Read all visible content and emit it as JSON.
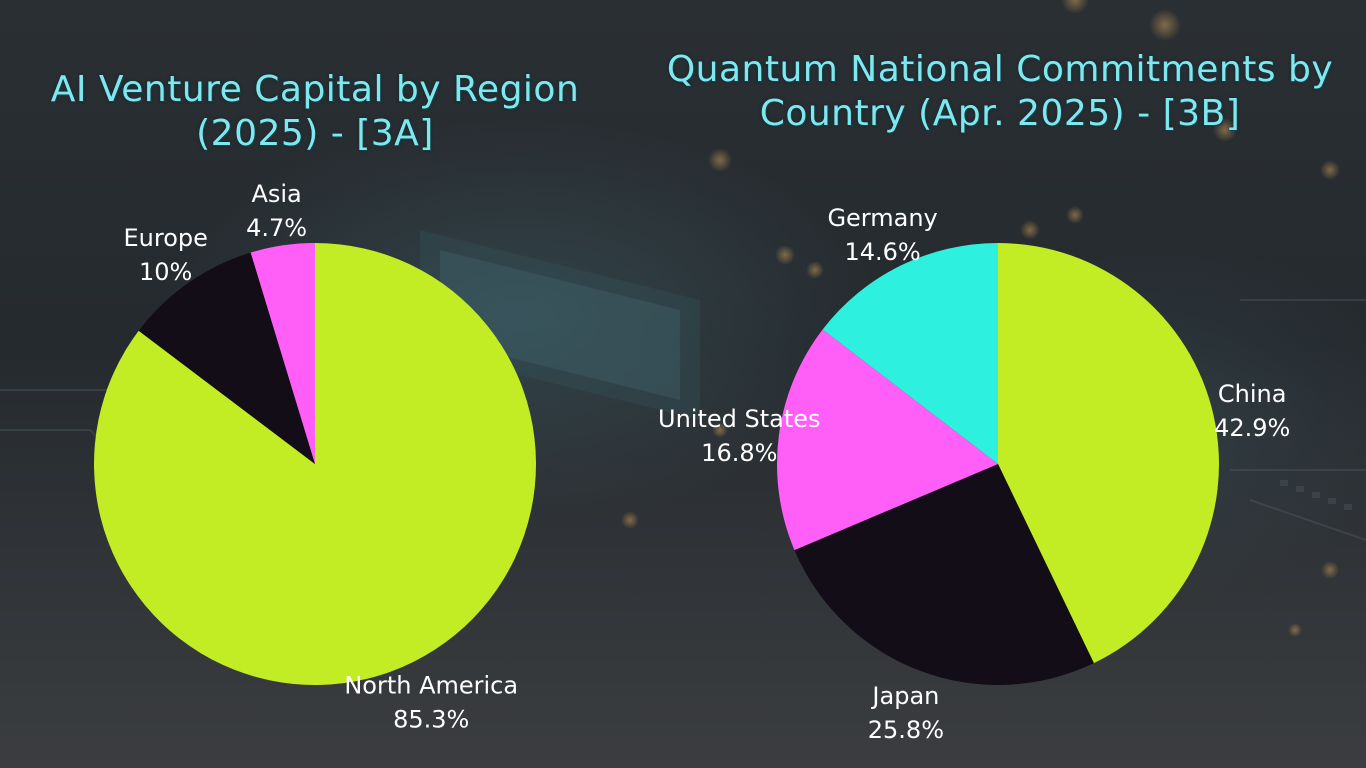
{
  "colors": {
    "lime": "#c2ec23",
    "magenta": "#ff5ef7",
    "dark": "#120d17",
    "cyan": "#2ef0de",
    "title": "#7fe8ee",
    "label": "#ffffff"
  },
  "chart_data": [
    {
      "type": "pie",
      "title": "AI Venture Capital by Region (2025) - [3A]",
      "start_angle_deg": 0,
      "direction": "clockwise",
      "slices": [
        {
          "label": "North America",
          "value": 85.3,
          "value_label": "85.3%",
          "color": "#c2ec23"
        },
        {
          "label": "Europe",
          "value": 10,
          "value_label": "10%",
          "color": "#120d17"
        },
        {
          "label": "Asia",
          "value": 4.7,
          "value_label": "4.7%",
          "color": "#ff5ef7"
        }
      ]
    },
    {
      "type": "pie",
      "title": "Quantum National Commitments by Country (Apr. 2025) - [3B]",
      "start_angle_deg": 0,
      "direction": "clockwise",
      "slices": [
        {
          "label": "China",
          "value": 42.9,
          "value_label": "42.9%",
          "color": "#c2ec23"
        },
        {
          "label": "Japan",
          "value": 25.8,
          "value_label": "25.8%",
          "color": "#120d17"
        },
        {
          "label": "United States",
          "value": 16.8,
          "value_label": "16.8%",
          "color": "#ff5ef7"
        },
        {
          "label": "Germany",
          "value": 14.6,
          "value_label": "14.6%",
          "color": "#2ef0de"
        }
      ]
    }
  ]
}
